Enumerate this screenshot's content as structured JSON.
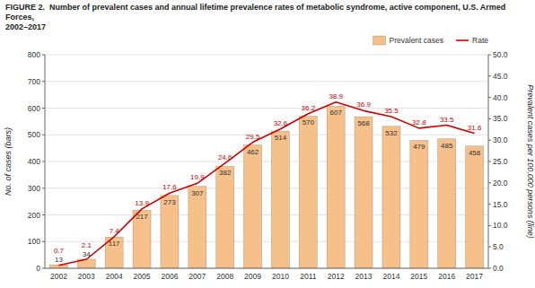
{
  "chart_data": {
    "type": "bar",
    "title": "FIGURE 2.  Number of prevalent cases and annual lifetime prevalence rates of metabolic syndrome, active component, U.S. Armed Forces,\n2002–2017",
    "categories": [
      "2002",
      "2003",
      "2004",
      "2005",
      "2006",
      "2007",
      "2008",
      "2009",
      "2010",
      "2011",
      "2012",
      "2013",
      "2014",
      "2015",
      "2016",
      "2017"
    ],
    "series": [
      {
        "name": "Prevalent cases",
        "type": "bar",
        "color": "#F5C08A",
        "values": [
          13,
          34,
          117,
          217,
          273,
          307,
          382,
          462,
          514,
          570,
          607,
          568,
          532,
          479,
          485,
          458
        ]
      },
      {
        "name": "Rate",
        "type": "line",
        "color": "#CC0000",
        "axis": "y2",
        "values": [
          0.7,
          2.1,
          7.4,
          13.9,
          17.6,
          19.9,
          24.6,
          29.5,
          32.6,
          36.2,
          38.9,
          36.9,
          35.5,
          32.8,
          33.5,
          31.6
        ]
      }
    ],
    "y_label": "No. of cases (bars)",
    "y2_label": "Prevalent cases per 100,000 persons (line)",
    "ylim": [
      0,
      800
    ],
    "yticks": [
      0,
      100,
      200,
      300,
      400,
      500,
      600,
      700,
      800
    ],
    "y2lim": [
      0,
      50.0
    ],
    "y2ticks": [
      {
        "value": 0,
        "label": "0.0"
      },
      {
        "value": 5,
        "label": "5.0"
      },
      {
        "value": 10,
        "label": "10.0"
      },
      {
        "value": 15,
        "label": "15.0"
      },
      {
        "value": 20,
        "label": "20.0"
      },
      {
        "value": 25,
        "label": "25.0"
      },
      {
        "value": 30,
        "label": "30.0"
      },
      {
        "value": 35,
        "label": "35.0"
      },
      {
        "value": 40,
        "label": "40.0"
      },
      {
        "value": 45,
        "label": "45.0"
      },
      {
        "value": 50,
        "label": "50.0"
      }
    ],
    "grid": true,
    "legend": "upper right",
    "data_labels": true
  }
}
